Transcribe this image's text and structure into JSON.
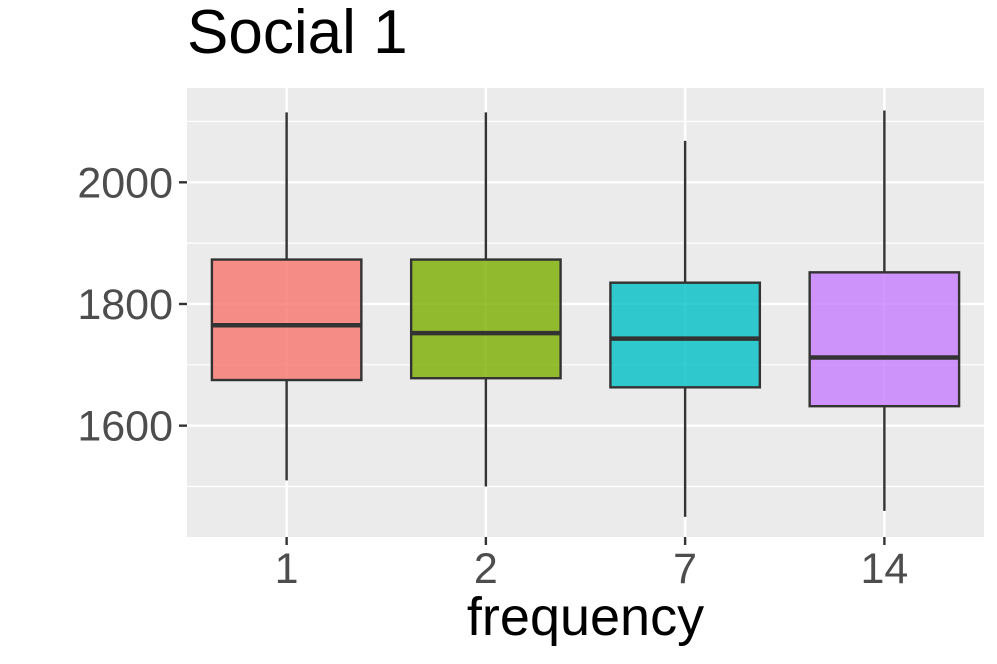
{
  "chart_data": {
    "type": "box",
    "title": "Social 1",
    "xlabel": "frequency",
    "ylabel": "",
    "categories": [
      "1",
      "2",
      "7",
      "14"
    ],
    "fill_colors": [
      "#F8766D",
      "#7CAE00",
      "#00BFC4",
      "#C77CFF"
    ],
    "boxes": [
      {
        "category": "1",
        "min": 1510,
        "q1": 1675,
        "median": 1765,
        "q3": 1873,
        "max": 2115
      },
      {
        "category": "2",
        "min": 1500,
        "q1": 1678,
        "median": 1752,
        "q3": 1873,
        "max": 2115
      },
      {
        "category": "7",
        "min": 1450,
        "q1": 1663,
        "median": 1743,
        "q3": 1835,
        "max": 2068
      },
      {
        "category": "14",
        "min": 1460,
        "q1": 1632,
        "median": 1712,
        "q3": 1852,
        "max": 2118
      }
    ],
    "ylim": [
      1417,
      2155
    ],
    "y_major_ticks": [
      1600,
      1800,
      2000
    ],
    "y_minor_gridlines": [
      1500,
      1700,
      1900,
      2100
    ],
    "grid": true,
    "panel_background": "#EBEBEB",
    "grid_color": "#FFFFFF",
    "legend": "none"
  }
}
